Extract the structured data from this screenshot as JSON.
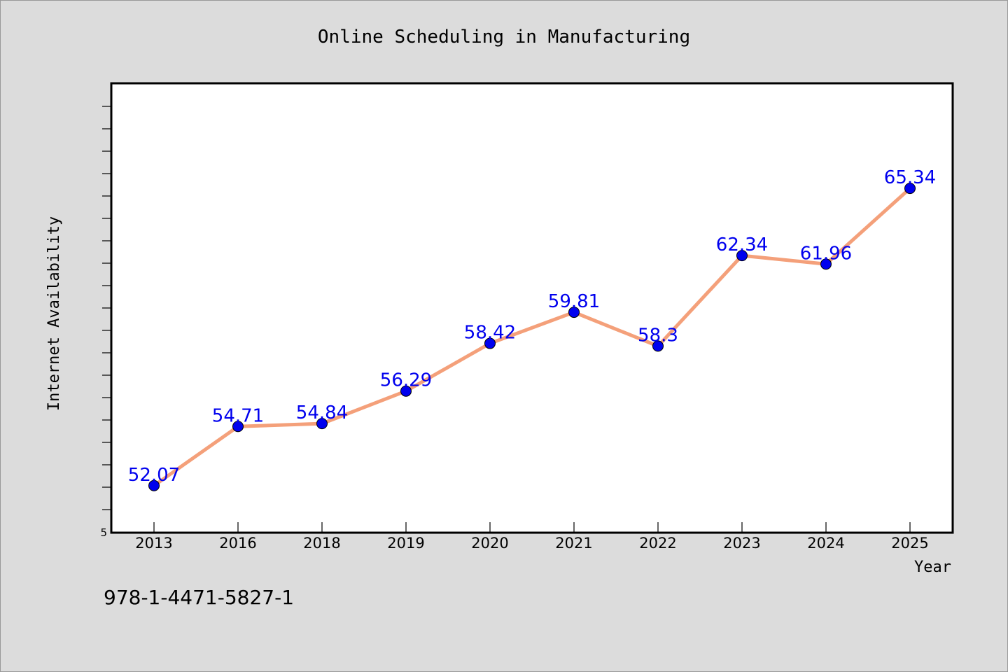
{
  "chart_data": {
    "type": "line",
    "title": "Online Scheduling in Manufacturing",
    "xlabel": "Year",
    "ylabel": "Internet Availability",
    "categories": [
      "2013",
      "2016",
      "2018",
      "2019",
      "2020",
      "2021",
      "2022",
      "2023",
      "2024",
      "2025"
    ],
    "series": [
      {
        "values": [
          52.07,
          54.71,
          54.84,
          56.29,
          58.42,
          59.81,
          58.3,
          62.34,
          61.96,
          65.34
        ],
        "line_color": "#f4a07a",
        "marker_color": "#0000ee"
      }
    ],
    "ylim": [
      50,
      70
    ],
    "y_tick_labels": [
      "5"
    ],
    "y_minor_tick_step": 1,
    "grid": false,
    "legend": "none",
    "data_label_color": "#0000ee",
    "background_color": "#dcdcdc",
    "plot_background_color": "#ffffff"
  },
  "footer": {
    "isbn": "978-1-4471-5827-1"
  }
}
